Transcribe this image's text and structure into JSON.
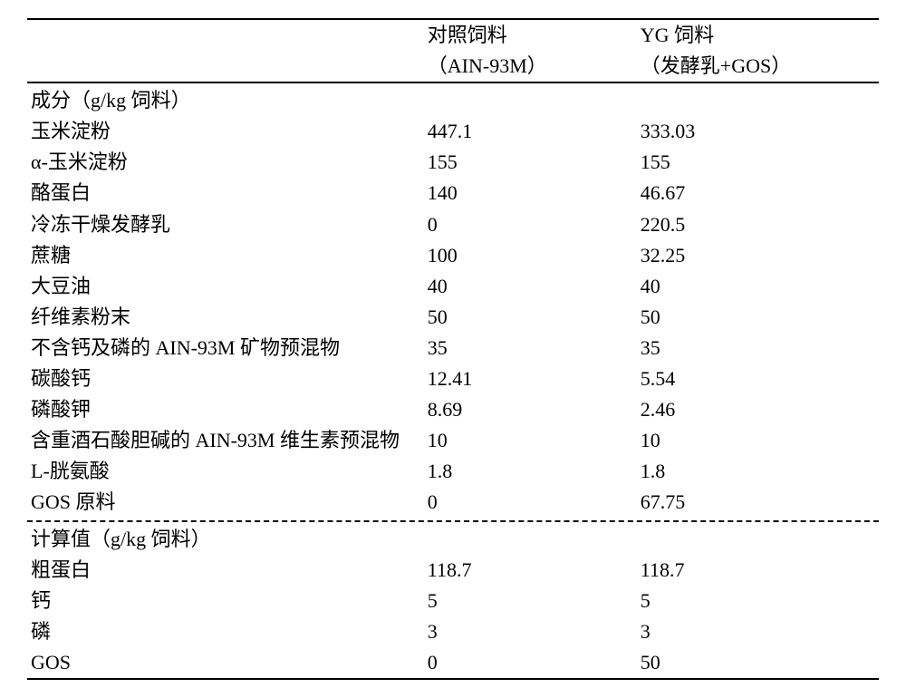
{
  "table": {
    "header": {
      "col1_line1": "对照饲料",
      "col1_line2": "（AIN-93M）",
      "col2_line1": "YG 饲料",
      "col2_line2": "（发酵乳+GOS）"
    },
    "section1_label": "成分（g/kg 饲料）",
    "ingredients": [
      {
        "label": "玉米淀粉",
        "val1": "447.1",
        "val2": "333.03"
      },
      {
        "label": "α-玉米淀粉",
        "val1": "155",
        "val2": "155"
      },
      {
        "label": "酪蛋白",
        "val1": "140",
        "val2": "46.67"
      },
      {
        "label": "冷冻干燥发酵乳",
        "val1": "0",
        "val2": "220.5"
      },
      {
        "label": "蔗糖",
        "val1": "100",
        "val2": "32.25"
      },
      {
        "label": "大豆油",
        "val1": "40",
        "val2": "40"
      },
      {
        "label": "纤维素粉末",
        "val1": "50",
        "val2": "50"
      },
      {
        "label": "不含钙及磷的 AIN-93M 矿物预混物",
        "val1": "35",
        "val2": "35"
      },
      {
        "label": "碳酸钙",
        "val1": "12.41",
        "val2": "5.54"
      },
      {
        "label": "磷酸钾",
        "val1": "8.69",
        "val2": "2.46"
      },
      {
        "label": "含重酒石酸胆碱的 AIN-93M 维生素预混物",
        "val1": "10",
        "val2": "10"
      },
      {
        "label": "L-胱氨酸",
        "val1": "1.8",
        "val2": "1.8"
      },
      {
        "label": "GOS 原料",
        "val1": "0",
        "val2": "67.75"
      }
    ],
    "section2_label": "计算值（g/kg 饲料）",
    "calculated": [
      {
        "label": "粗蛋白",
        "val1": "118.7",
        "val2": "118.7"
      },
      {
        "label": "钙",
        "val1": "5",
        "val2": "5"
      },
      {
        "label": "磷",
        "val1": "3",
        "val2": "3"
      },
      {
        "label": "GOS",
        "val1": "0",
        "val2": "50"
      }
    ]
  }
}
